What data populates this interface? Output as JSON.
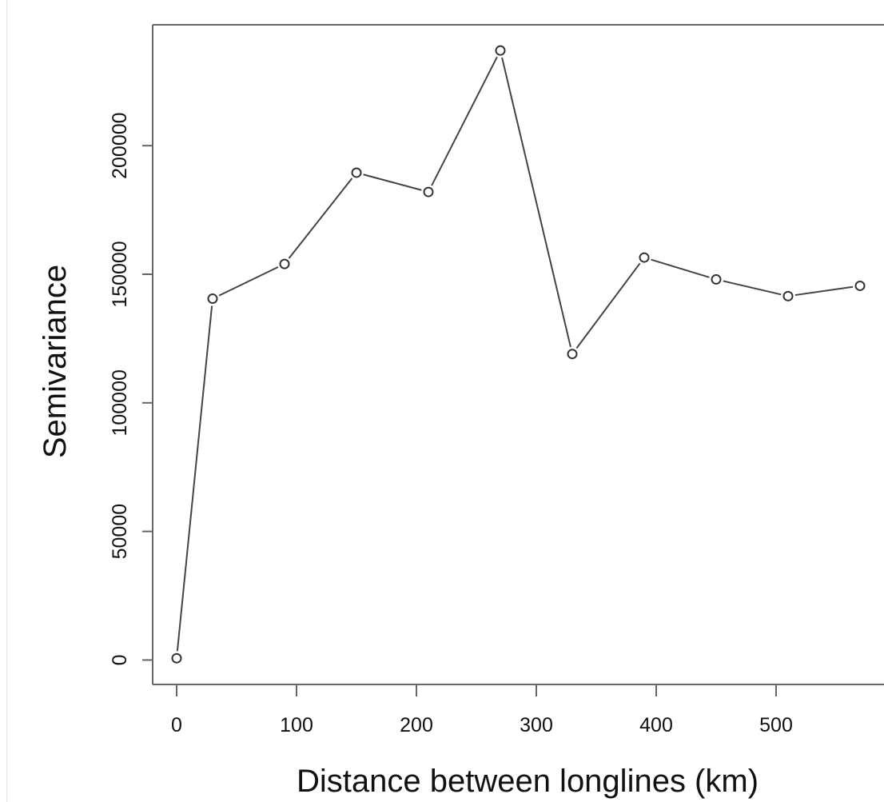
{
  "chart_data": {
    "type": "line",
    "title": "",
    "xlabel": "Distance between longlines (km)",
    "ylabel": "Semivariance",
    "xlim": [
      -20,
      590
    ],
    "ylim": [
      -9500,
      247000
    ],
    "x_ticks": [
      0,
      100,
      200,
      300,
      400,
      500
    ],
    "x_tick_labels": [
      "0",
      "100",
      "200",
      "300",
      "400",
      "500"
    ],
    "y_ticks": [
      0,
      50000,
      100000,
      150000,
      200000
    ],
    "y_tick_labels": [
      "0",
      "50000",
      "100000",
      "150000",
      "200000"
    ],
    "grid": false,
    "marker": "open-circle",
    "line_color": "#444444",
    "series": [
      {
        "x": [
          0,
          30,
          90,
          150,
          210,
          270,
          330,
          390,
          450,
          510,
          570
        ],
        "y": [
          700,
          140500,
          154000,
          189500,
          182000,
          237000,
          119000,
          156500,
          148000,
          141500,
          145500
        ]
      }
    ]
  }
}
